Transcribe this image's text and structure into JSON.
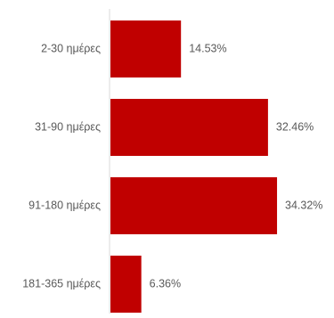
{
  "colors": {
    "bar": "#c00000",
    "axis": "#d9d9d9",
    "text": "#595959"
  },
  "chart_data": {
    "type": "bar",
    "orientation": "horizontal",
    "categories": [
      "2-30 ημέρες",
      "31-90 ημέρες",
      "91-180 ημέρες",
      "181-365 ημέρες"
    ],
    "values": [
      14.53,
      32.46,
      34.32,
      6.36
    ],
    "data_labels": [
      "14.53%",
      "32.46%",
      "34.32%",
      "6.36%"
    ],
    "title": "",
    "xlabel": "",
    "ylabel": "",
    "grid": false,
    "legend": "none"
  }
}
